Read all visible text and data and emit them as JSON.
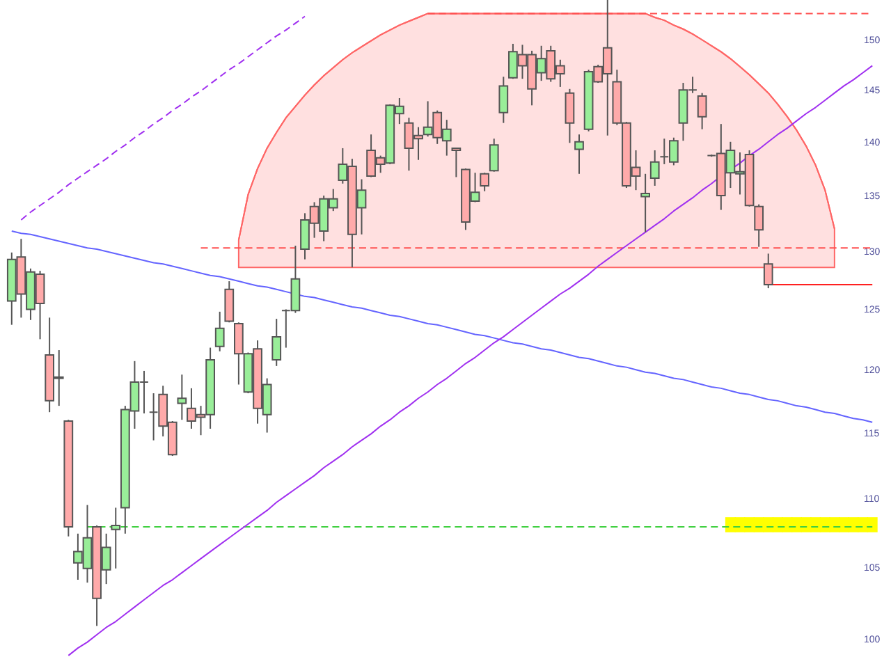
{
  "chart_data": {
    "type": "candlestick",
    "log": true,
    "tick_labels": "y",
    "ylim": [
      98.8,
      154.1
    ],
    "yticks": [
      100,
      105,
      110,
      115,
      120,
      125,
      130,
      135,
      140,
      145,
      150
    ],
    "categories": [
      null,
      null,
      null,
      null,
      null,
      null,
      null,
      null,
      null,
      null,
      null,
      null,
      null,
      null,
      null,
      null,
      null,
      null,
      null,
      null,
      null,
      null,
      null,
      null,
      null,
      null,
      null,
      null,
      null,
      null,
      null,
      null,
      null,
      null,
      null,
      null,
      null,
      null,
      null,
      null,
      null,
      null,
      null,
      null,
      null,
      null,
      null,
      null,
      null,
      null,
      null,
      null,
      null,
      null,
      null,
      null,
      null,
      null,
      null,
      null,
      null,
      null,
      null,
      null,
      null,
      null,
      null,
      null,
      null,
      null,
      null,
      null,
      null,
      null,
      null,
      null,
      null,
      null,
      null,
      null,
      null,
      null,
      null,
      null,
      null,
      null,
      null,
      null,
      null,
      null,
      null,
      null
    ],
    "ohlc": [
      [
        125.7,
        129.9,
        123.7,
        129.3
      ],
      [
        129.5,
        131.1,
        124.3,
        126.3
      ],
      [
        125.0,
        128.5,
        124.1,
        128.2
      ],
      [
        128.0,
        128.3,
        122.5,
        125.5
      ],
      [
        121.2,
        124.3,
        116.6,
        117.5
      ],
      [
        119.4,
        121.6,
        117.1,
        119.3
      ],
      [
        115.9,
        116.0,
        107.2,
        107.9
      ],
      [
        105.3,
        107.4,
        104.1,
        106.1
      ],
      [
        104.9,
        109.5,
        103.9,
        107.1
      ],
      [
        107.9,
        108.0,
        100.9,
        102.8
      ],
      [
        104.8,
        107.4,
        103.8,
        106.4
      ],
      [
        107.7,
        109.3,
        104.9,
        108.0
      ],
      [
        109.3,
        117.1,
        107.4,
        116.8
      ],
      [
        116.7,
        120.7,
        115.3,
        119.0
      ],
      [
        119.0,
        119.9,
        116.5,
        119.0
      ],
      [
        116.6,
        118.1,
        114.4,
        116.6
      ],
      [
        118.0,
        118.7,
        114.7,
        115.5
      ],
      [
        115.8,
        115.9,
        113.2,
        113.3
      ],
      [
        117.3,
        119.6,
        116.0,
        117.7
      ],
      [
        116.9,
        118.5,
        115.3,
        115.9
      ],
      [
        116.4,
        117.1,
        114.8,
        116.2
      ],
      [
        116.4,
        121.8,
        115.3,
        120.8
      ],
      [
        121.9,
        124.8,
        121.5,
        123.4
      ],
      [
        126.7,
        127.4,
        123.9,
        124.0
      ],
      [
        123.8,
        123.9,
        118.8,
        121.3
      ],
      [
        118.2,
        121.4,
        118.1,
        121.3
      ],
      [
        121.7,
        122.4,
        115.7,
        116.9
      ],
      [
        116.4,
        119.3,
        115.0,
        118.8
      ],
      [
        120.8,
        124.2,
        120.3,
        122.7
      ],
      [
        124.9,
        125.0,
        121.8,
        124.9
      ],
      [
        124.9,
        130.5,
        124.7,
        127.6
      ],
      [
        130.2,
        133.4,
        129.3,
        132.8
      ],
      [
        134.0,
        134.4,
        131.2,
        132.5
      ],
      [
        131.8,
        135.0,
        130.9,
        134.7
      ],
      [
        133.9,
        135.6,
        133.6,
        134.7
      ],
      [
        136.4,
        139.4,
        136.1,
        137.9
      ],
      [
        137.7,
        138.4,
        128.6,
        131.5
      ],
      [
        133.9,
        136.5,
        131.5,
        135.5
      ],
      [
        139.2,
        140.7,
        136.7,
        136.8
      ],
      [
        138.5,
        138.7,
        137.1,
        137.9
      ],
      [
        138.0,
        143.6,
        137.9,
        143.5
      ],
      [
        142.7,
        144.2,
        141.7,
        143.4
      ],
      [
        141.8,
        142.3,
        137.3,
        139.4
      ],
      [
        140.6,
        141.4,
        138.3,
        140.3
      ],
      [
        140.7,
        143.9,
        140.5,
        141.4
      ],
      [
        142.8,
        143.0,
        139.8,
        140.4
      ],
      [
        140.1,
        142.1,
        138.7,
        141.2
      ],
      [
        139.4,
        139.4,
        136.7,
        139.2
      ],
      [
        137.4,
        137.5,
        131.9,
        132.6
      ],
      [
        134.5,
        137.1,
        134.4,
        135.3
      ],
      [
        137.0,
        137.1,
        135.4,
        135.9
      ],
      [
        137.3,
        140.3,
        137.2,
        139.7
      ],
      [
        142.8,
        146.3,
        141.8,
        145.4
      ],
      [
        146.2,
        149.6,
        146.1,
        148.8
      ],
      [
        148.5,
        149.5,
        146.1,
        147.4
      ],
      [
        148.5,
        148.9,
        143.5,
        145.1
      ],
      [
        146.7,
        149.4,
        145.9,
        148.1
      ],
      [
        148.9,
        149.4,
        145.8,
        146.1
      ],
      [
        147.4,
        148.0,
        145.3,
        146.6
      ],
      [
        144.7,
        145.1,
        139.9,
        141.8
      ],
      [
        139.3,
        140.7,
        137.0,
        140.0
      ],
      [
        141.2,
        147.0,
        141.0,
        146.8
      ],
      [
        147.3,
        147.5,
        145.7,
        145.8
      ],
      [
        149.2,
        154.1,
        140.6,
        146.6
      ],
      [
        145.8,
        147.0,
        141.6,
        141.8
      ],
      [
        141.8,
        141.9,
        135.7,
        135.9
      ],
      [
        137.6,
        139.2,
        135.5,
        136.8
      ],
      [
        134.9,
        137.0,
        131.7,
        135.2
      ],
      [
        136.6,
        139.2,
        135.9,
        138.1
      ],
      [
        138.6,
        140.3,
        137.9,
        138.6
      ],
      [
        138.1,
        140.4,
        137.8,
        140.1
      ],
      [
        141.8,
        145.7,
        140.1,
        145.0
      ],
      [
        145.0,
        146.3,
        144.7,
        145.0
      ],
      [
        144.4,
        144.7,
        141.2,
        142.4
      ],
      [
        138.7,
        138.8,
        138.6,
        138.7
      ],
      [
        138.9,
        141.7,
        133.7,
        135.0
      ],
      [
        137.1,
        140.0,
        135.7,
        139.2
      ],
      [
        137.0,
        139.0,
        135.1,
        137.2
      ],
      [
        138.8,
        139.2,
        134.0,
        134.1
      ],
      [
        134.0,
        134.2,
        130.4,
        131.9
      ],
      [
        128.9,
        129.8,
        126.8,
        127.1
      ],
      null,
      null,
      null,
      null,
      null,
      null,
      null,
      null,
      null,
      null,
      null
    ],
    "colors": [
      "#99ee99",
      "#ffaaaa",
      "#99ee99",
      "#ffaaaa",
      "#ffaaaa",
      "#ffaaaa",
      "#ffaaaa",
      "#99ee99",
      "#99ee99",
      "#ffaaaa",
      "#99ee99",
      "#99ee99",
      "#99ee99",
      "#99ee99",
      "#555555",
      "#555555",
      "#ffaaaa",
      "#ffaaaa",
      "#99ee99",
      "#ffaaaa",
      "#ffaaaa",
      "#99ee99",
      "#99ee99",
      "#ffaaaa",
      "#ffaaaa",
      "#99ee99",
      "#ffaaaa",
      "#99ee99",
      "#99ee99",
      "#555555",
      "#99ee99",
      "#99ee99",
      "#ffaaaa",
      "#99ee99",
      "#99ee99",
      "#99ee99",
      "#ffaaaa",
      "#99ee99",
      "#ffaaaa",
      "#ffaaaa",
      "#99ee99",
      "#99ee99",
      "#ffaaaa",
      "#ffaaaa",
      "#99ee99",
      "#ffaaaa",
      "#99ee99",
      "#ffaaaa",
      "#ffaaaa",
      "#99ee99",
      "#ffaaaa",
      "#99ee99",
      "#99ee99",
      "#99ee99",
      "#ffaaaa",
      "#ffaaaa",
      "#99ee99",
      "#ffaaaa",
      "#ffaaaa",
      "#ffaaaa",
      "#99ee99",
      "#99ee99",
      "#ffaaaa",
      "#ffaaaa",
      "#ffaaaa",
      "#ffaaaa",
      "#ffaaaa",
      "#99ee99",
      "#99ee99",
      "#555555",
      "#99ee99",
      "#99ee99",
      "#555555",
      "#ffaaaa",
      "#555555",
      "#ffaaaa",
      "#99ee99",
      "#99ee99",
      "#ffaaaa",
      "#ffaaaa",
      "#ffaaaa",
      null,
      null,
      null,
      null,
      null,
      null,
      null,
      null,
      null,
      null,
      null
    ],
    "series": [
      {
        "type": "line",
        "color": "#ff6666",
        "values": [
          null,
          null,
          null,
          null,
          null,
          null,
          null,
          null,
          null,
          null,
          null,
          null,
          null,
          null,
          null,
          null,
          null,
          null,
          null,
          null,
          null,
          null,
          null,
          null,
          131.0,
          135.1,
          137.5,
          139.4,
          140.9,
          142.3,
          143.4,
          144.5,
          145.5,
          146.4,
          147.2,
          148.0,
          148.7,
          149.3,
          149.9,
          150.5,
          151.0,
          151.5,
          151.9,
          152.3,
          152.7,
          152.7,
          152.7,
          152.7,
          152.7,
          152.7,
          152.7,
          152.7,
          152.7,
          152.7,
          152.7,
          152.7,
          152.7,
          152.7,
          152.7,
          152.7,
          152.7,
          152.7,
          152.7,
          152.7,
          152.7,
          152.7,
          152.7,
          152.7,
          152.3,
          152.0,
          151.5,
          151.1,
          150.6,
          150.0,
          149.4,
          148.8,
          148.1,
          147.3,
          146.5,
          145.6,
          144.7,
          143.6,
          142.4,
          141.1,
          139.6,
          137.8,
          135.5,
          132.0,
          null,
          null,
          null,
          null
        ],
        "upper": [
          null,
          null,
          null,
          null,
          null,
          null,
          null,
          null,
          null,
          null,
          null,
          null,
          null,
          null,
          null,
          null,
          null,
          null,
          null,
          null,
          null,
          null,
          null,
          null,
          131.0,
          135.1,
          137.5,
          139.4,
          140.9,
          142.3,
          143.4,
          144.5,
          145.5,
          146.4,
          147.2,
          148.0,
          148.7,
          149.3,
          149.9,
          150.5,
          151.0,
          151.5,
          151.9,
          152.3,
          152.7,
          152.7,
          152.7,
          152.7,
          152.7,
          152.7,
          152.7,
          152.7,
          152.7,
          152.7,
          152.7,
          152.7,
          152.7,
          152.7,
          152.7,
          152.7,
          152.7,
          152.7,
          152.7,
          152.7,
          152.7,
          152.7,
          152.7,
          152.7,
          152.3,
          152.0,
          151.5,
          151.1,
          150.6,
          150.0,
          149.4,
          148.8,
          148.1,
          147.3,
          146.5,
          145.6,
          144.7,
          143.6,
          142.4,
          141.1,
          139.6,
          137.8,
          135.5,
          132.0,
          null,
          null,
          null,
          null
        ],
        "lower": [
          null,
          null,
          null,
          null,
          null,
          null,
          null,
          null,
          null,
          null,
          null,
          null,
          null,
          null,
          null,
          null,
          null,
          null,
          null,
          null,
          null,
          null,
          null,
          null,
          128.6,
          128.6,
          128.6,
          128.6,
          128.6,
          128.6,
          128.6,
          128.6,
          128.6,
          128.6,
          128.6,
          128.6,
          128.6,
          128.6,
          128.6,
          128.6,
          128.6,
          128.6,
          128.6,
          128.6,
          128.6,
          128.6,
          128.6,
          128.6,
          128.6,
          128.6,
          128.6,
          128.6,
          128.6,
          128.6,
          128.6,
          128.6,
          128.6,
          128.6,
          128.6,
          128.6,
          128.6,
          128.6,
          128.6,
          128.6,
          128.6,
          128.6,
          128.6,
          128.6,
          128.6,
          128.6,
          128.6,
          128.6,
          128.6,
          128.6,
          128.6,
          128.6,
          128.6,
          128.6,
          128.6,
          128.6,
          128.6,
          128.6,
          128.6,
          128.6,
          128.6,
          128.6,
          128.6,
          128.6,
          null,
          null,
          null,
          null
        ]
      },
      {
        "type": "bar",
        "color": "#ffff00",
        "values": [
          null,
          null,
          null,
          null,
          null,
          null,
          null,
          null,
          null,
          null,
          null,
          null,
          null,
          null,
          null,
          null,
          null,
          null,
          null,
          null,
          null,
          null,
          null,
          null,
          null,
          null,
          null,
          null,
          null,
          null,
          null,
          null,
          null,
          null,
          null,
          null,
          null,
          null,
          null,
          null,
          null,
          null,
          null,
          null,
          null,
          null,
          null,
          null,
          null,
          null,
          null,
          null,
          null,
          null,
          null,
          null,
          null,
          null,
          null,
          null,
          null,
          null,
          null,
          null,
          null,
          null,
          null,
          null,
          null,
          null,
          null,
          null,
          null,
          null,
          null,
          null,
          1.1,
          1.1,
          1.1,
          1.1,
          1.1,
          1.1,
          1.1,
          1.1,
          1.1,
          1.1,
          1.1,
          1.1,
          1.1,
          1.1,
          1.1,
          1.1
        ],
        "base": [
          null,
          null,
          null,
          null,
          null,
          null,
          null,
          null,
          null,
          null,
          null,
          null,
          null,
          null,
          null,
          null,
          null,
          null,
          null,
          null,
          null,
          null,
          null,
          null,
          null,
          null,
          null,
          null,
          null,
          null,
          null,
          null,
          null,
          null,
          null,
          null,
          null,
          null,
          null,
          null,
          null,
          null,
          null,
          null,
          null,
          null,
          null,
          null,
          null,
          null,
          null,
          null,
          null,
          null,
          null,
          null,
          null,
          null,
          null,
          null,
          null,
          null,
          null,
          null,
          null,
          null,
          null,
          null,
          null,
          null,
          null,
          null,
          null,
          null,
          null,
          null,
          107.5,
          107.5,
          107.5,
          107.5,
          107.5,
          107.5,
          107.5,
          107.5,
          107.5,
          107.5,
          107.5,
          107.5,
          107.5,
          107.5,
          107.5,
          107.5
        ]
      },
      {
        "type": "line",
        "color": "#ff5050",
        "line_style": "dashed",
        "values": [
          null,
          null,
          null,
          null,
          null,
          null,
          null,
          null,
          null,
          null,
          null,
          null,
          null,
          null,
          null,
          null,
          null,
          null,
          null,
          null,
          null,
          null,
          null,
          null,
          null,
          null,
          null,
          null,
          null,
          null,
          null,
          null,
          null,
          null,
          null,
          null,
          null,
          null,
          null,
          null,
          null,
          null,
          null,
          null,
          152.7,
          152.7,
          152.7,
          152.7,
          152.7,
          152.7,
          152.7,
          152.7,
          152.7,
          152.7,
          152.7,
          152.7,
          152.7,
          152.7,
          152.7,
          152.7,
          152.7,
          152.7,
          152.7,
          152.7,
          152.7,
          152.7,
          152.7,
          152.7,
          152.7,
          152.7,
          152.7,
          152.7,
          152.7,
          152.7,
          152.7,
          152.7,
          152.7,
          152.7,
          152.7,
          152.7,
          152.7,
          152.7,
          152.7,
          152.7,
          152.7,
          152.7,
          152.7,
          152.7,
          152.7,
          152.7,
          152.7,
          152.7
        ]
      },
      {
        "type": "line",
        "color": "#ff5050",
        "line_style": "dashed",
        "values": [
          null,
          null,
          null,
          null,
          null,
          null,
          null,
          null,
          null,
          null,
          null,
          null,
          null,
          null,
          null,
          null,
          null,
          null,
          null,
          null,
          130.3,
          130.3,
          130.3,
          130.3,
          130.3,
          130.3,
          130.3,
          130.3,
          130.3,
          130.3,
          130.3,
          null,
          130.3,
          130.3,
          130.3,
          130.3,
          130.3,
          130.3,
          130.3,
          130.3,
          130.3,
          130.3,
          130.3,
          130.3,
          130.3,
          130.3,
          130.3,
          130.3,
          130.3,
          130.3,
          130.3,
          130.3,
          130.3,
          130.3,
          130.3,
          130.3,
          130.3,
          130.3,
          130.3,
          130.3,
          130.3,
          130.3,
          130.3,
          130.3,
          130.3,
          130.3,
          130.3,
          130.3,
          130.3,
          130.3,
          130.3,
          130.3,
          130.3,
          130.3,
          130.3,
          130.3,
          130.3,
          130.3,
          130.3,
          130.3,
          130.3,
          130.3,
          130.3,
          130.3,
          130.3,
          130.3,
          130.3,
          130.3,
          130.3,
          130.3,
          130.3,
          130.3
        ]
      },
      {
        "type": "line",
        "color": "#40d040",
        "line_style": "dashed",
        "values": [
          null,
          null,
          null,
          null,
          null,
          null,
          null,
          null,
          107.9,
          107.9,
          107.9,
          107.9,
          107.9,
          107.9,
          107.9,
          107.9,
          107.9,
          107.9,
          107.9,
          107.9,
          107.9,
          107.9,
          107.9,
          107.9,
          107.9,
          107.9,
          107.9,
          107.9,
          107.9,
          107.9,
          107.9,
          107.9,
          107.9,
          107.9,
          107.9,
          107.9,
          107.9,
          107.9,
          107.9,
          107.9,
          107.9,
          107.9,
          107.9,
          107.9,
          107.9,
          107.9,
          107.9,
          107.9,
          107.9,
          107.9,
          107.9,
          107.9,
          107.9,
          107.9,
          107.9,
          107.9,
          107.9,
          107.9,
          107.9,
          107.9,
          107.9,
          107.9,
          107.9,
          107.9,
          107.9,
          107.9,
          107.9,
          107.9,
          107.9,
          107.9,
          107.9,
          107.9,
          107.9,
          107.9,
          107.9,
          107.9,
          107.9,
          107.9,
          107.9,
          107.9,
          107.9,
          107.9,
          107.9,
          107.9,
          107.9,
          107.9,
          107.9,
          107.9,
          107.9,
          107.9,
          107.9,
          107.9
        ]
      },
      {
        "type": "line",
        "color": "#ff2020",
        "values": [
          null,
          null,
          null,
          null,
          null,
          null,
          null,
          null,
          null,
          null,
          null,
          null,
          null,
          null,
          null,
          null,
          null,
          null,
          null,
          null,
          null,
          null,
          null,
          null,
          null,
          null,
          null,
          null,
          null,
          null,
          null,
          null,
          null,
          null,
          null,
          null,
          null,
          null,
          null,
          null,
          null,
          null,
          null,
          null,
          null,
          null,
          null,
          null,
          null,
          null,
          null,
          null,
          null,
          null,
          null,
          null,
          null,
          null,
          null,
          null,
          null,
          null,
          null,
          null,
          null,
          null,
          null,
          null,
          null,
          null,
          null,
          null,
          null,
          null,
          null,
          null,
          null,
          null,
          null,
          null,
          127.1,
          127.1,
          127.1,
          127.1,
          127.1,
          127.1,
          127.1,
          127.1,
          127.1,
          127.1,
          127.1,
          127.1
        ]
      },
      {
        "type": "line",
        "color": "#6464ff",
        "values": [
          131.8,
          131.6,
          131.5,
          131.3,
          131.1,
          130.9,
          130.7,
          130.5,
          130.3,
          130.2,
          130.0,
          129.8,
          129.6,
          129.4,
          129.2,
          129.0,
          128.9,
          128.7,
          128.5,
          128.3,
          128.1,
          127.9,
          127.8,
          127.6,
          127.4,
          127.2,
          127.0,
          126.9,
          126.7,
          126.5,
          126.3,
          126.1,
          126.0,
          125.8,
          125.6,
          125.4,
          125.2,
          125.1,
          124.9,
          124.7,
          124.5,
          124.4,
          124.2,
          124.0,
          123.8,
          123.7,
          123.5,
          123.3,
          123.1,
          122.9,
          122.8,
          122.6,
          122.4,
          122.2,
          122.1,
          121.9,
          121.7,
          121.6,
          121.4,
          121.2,
          121.0,
          120.9,
          120.7,
          120.5,
          120.3,
          120.2,
          120.0,
          119.8,
          119.7,
          119.5,
          119.3,
          119.2,
          119.0,
          118.8,
          118.6,
          118.5,
          118.3,
          118.1,
          118.0,
          117.8,
          117.6,
          117.5,
          117.3,
          117.1,
          117.0,
          116.8,
          116.6,
          116.5,
          116.3,
          116.1,
          116.0,
          115.8
        ]
      },
      {
        "type": "line",
        "color": "#a030f0",
        "values": [
          null,
          null,
          null,
          null,
          null,
          null,
          98.9,
          99.4,
          99.8,
          100.3,
          100.8,
          101.2,
          101.7,
          102.2,
          102.7,
          103.2,
          103.7,
          104.1,
          104.6,
          105.1,
          105.6,
          106.1,
          106.6,
          107.1,
          107.6,
          108.1,
          108.6,
          109.1,
          109.7,
          110.2,
          110.7,
          111.2,
          111.7,
          112.3,
          112.8,
          113.3,
          113.9,
          114.4,
          114.9,
          115.5,
          116.0,
          116.6,
          117.1,
          117.7,
          118.2,
          118.8,
          119.3,
          119.9,
          120.5,
          121.0,
          121.6,
          122.2,
          122.7,
          123.3,
          123.9,
          124.5,
          125.1,
          125.7,
          126.3,
          126.8,
          127.4,
          128.0,
          128.7,
          129.3,
          129.9,
          130.5,
          131.1,
          131.7,
          132.3,
          132.9,
          133.6,
          134.2,
          134.8,
          135.5,
          136.1,
          136.8,
          137.4,
          138.0,
          138.7,
          139.3,
          140.0,
          140.7,
          141.3,
          142.0,
          142.7,
          143.3,
          144.0,
          144.7,
          145.4,
          146.0,
          146.7,
          147.4
        ]
      },
      {
        "type": "line",
        "color": "#a030f0",
        "line_style": "dashed",
        "values": [
          null,
          132.8,
          133.5,
          134.1,
          134.7,
          135.3,
          136.0,
          136.6,
          137.2,
          137.8,
          138.4,
          139.1,
          139.7,
          140.4,
          141.0,
          141.7,
          142.3,
          143.0,
          143.6,
          144.3,
          144.9,
          145.6,
          146.3,
          147.0,
          147.6,
          148.3,
          149.0,
          149.7,
          150.4,
          151.0,
          151.7,
          152.4,
          null,
          null,
          null,
          null,
          null,
          null,
          null,
          null,
          null,
          null,
          null,
          null,
          null,
          null,
          null,
          null,
          null,
          null,
          null,
          null,
          null,
          null,
          null,
          null,
          null,
          null,
          null,
          null,
          null,
          null,
          null,
          null,
          null,
          null,
          null,
          null,
          null,
          null,
          null,
          null,
          null,
          null,
          null,
          null,
          null,
          null,
          null,
          null,
          null,
          null,
          null,
          null,
          null,
          null,
          null,
          null,
          null,
          null,
          null,
          null
        ]
      }
    ]
  }
}
